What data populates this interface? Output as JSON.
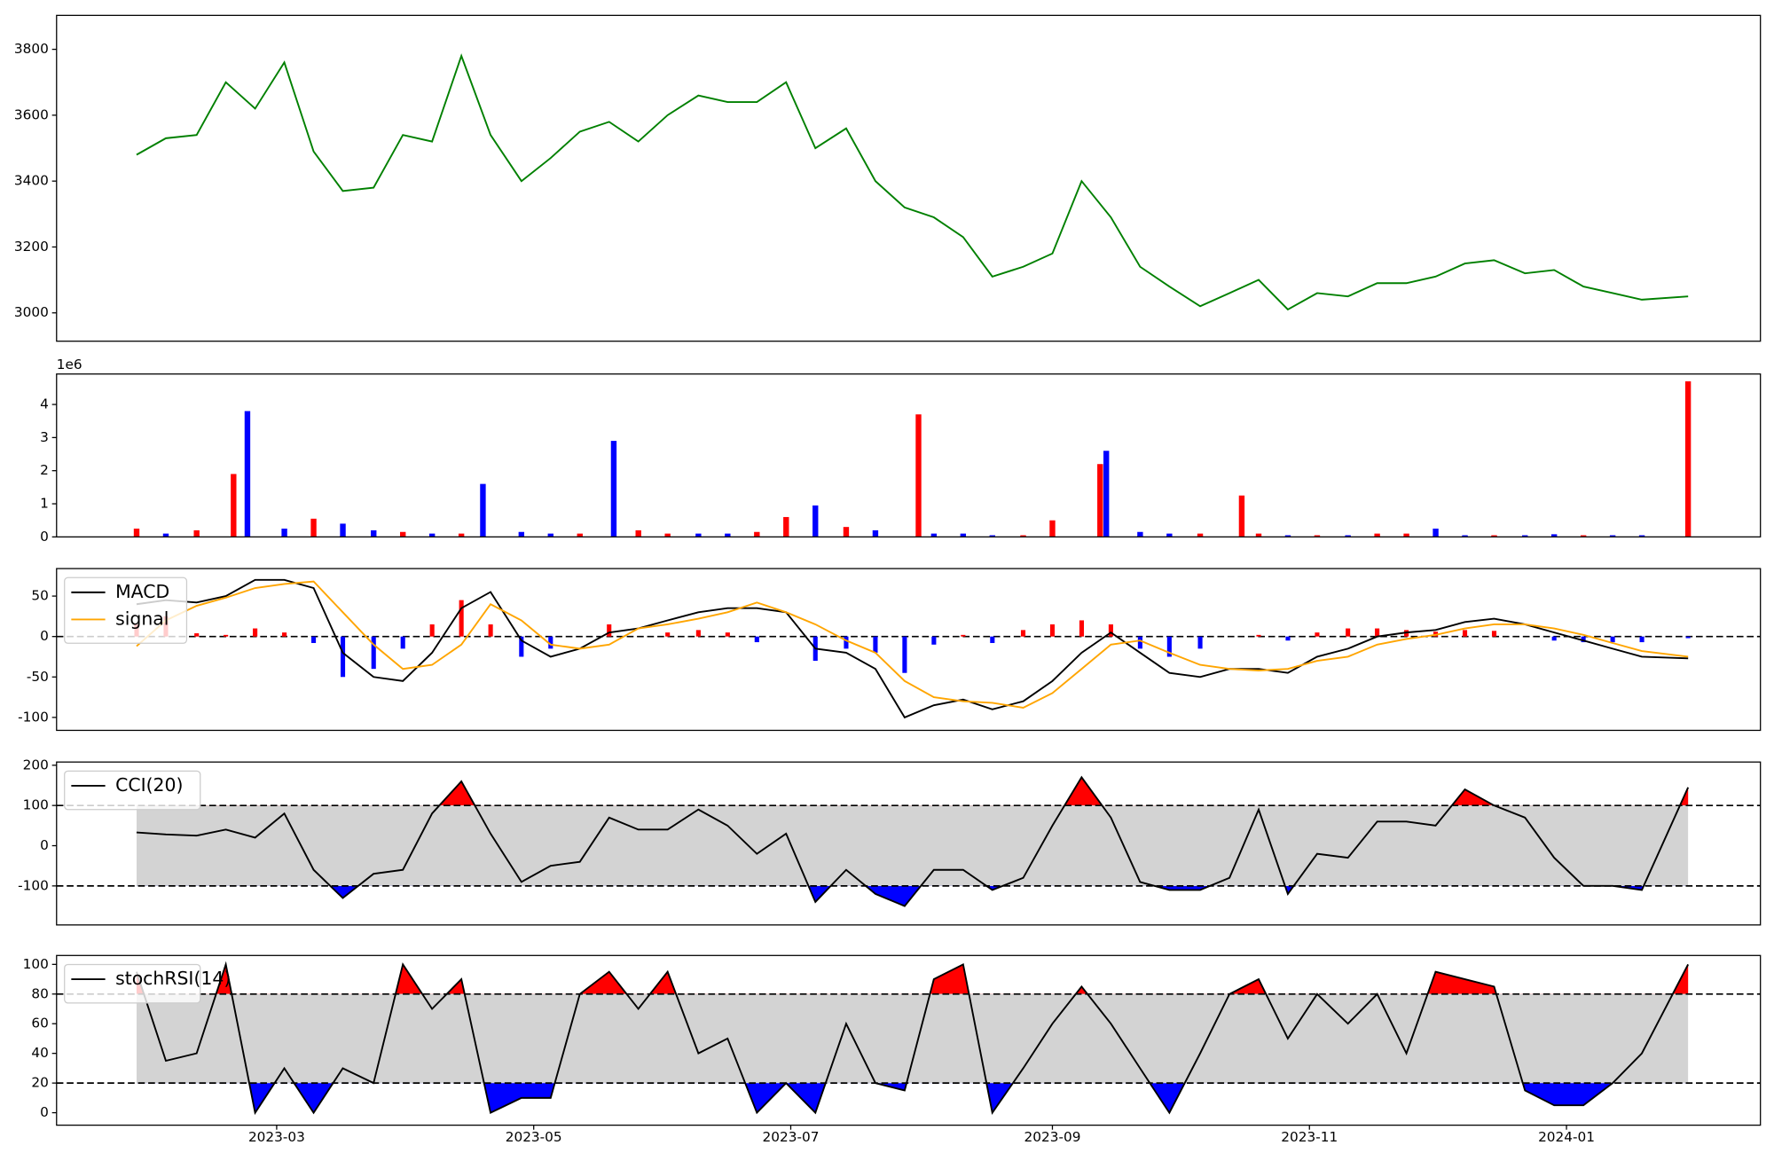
{
  "chart_data": [
    {
      "type": "line",
      "color": "#008000",
      "x": [
        2023.071,
        2023.09,
        2023.11,
        2023.129,
        2023.148,
        2023.167,
        2023.186,
        2023.205,
        2023.225,
        2023.244,
        2023.263,
        2023.282,
        2023.301,
        2023.321,
        2023.34,
        2023.359,
        2023.378,
        2023.397,
        2023.416,
        2023.436,
        2023.455,
        2023.474,
        2023.493,
        2023.512,
        2023.532,
        2023.551,
        2023.57,
        2023.589,
        2023.608,
        2023.627,
        2023.647,
        2023.666,
        2023.685,
        2023.704,
        2023.723,
        2023.742,
        2023.762,
        2023.781,
        2023.8,
        2023.819,
        2023.838,
        2023.858,
        2023.877,
        2023.896,
        2023.915,
        2023.934,
        2023.953,
        2023.973,
        2023.992,
        2024.011,
        2024.03,
        2024.049,
        2024.079
      ],
      "values": [
        3480,
        3530,
        3540,
        3700,
        3620,
        3760,
        3490,
        3370,
        3380,
        3540,
        3520,
        3780,
        3540,
        3400,
        3470,
        3550,
        3580,
        3520,
        3600,
        3660,
        3640,
        3640,
        3700,
        3500,
        3560,
        3400,
        3320,
        3290,
        3230,
        3110,
        3140,
        3180,
        3400,
        3290,
        3140,
        3080,
        3020,
        3060,
        3100,
        3010,
        3060,
        3050,
        3090,
        3090,
        3110,
        3150,
        3160,
        3120,
        3130,
        3080,
        3060,
        3040,
        3050
      ],
      "xlim": [
        2023.019,
        2024.126
      ],
      "ylim": [
        2914,
        3903
      ],
      "yticks": [
        3000,
        3200,
        3400,
        3600,
        3800
      ]
    },
    {
      "type": "bar",
      "y_offset_label": "1e6",
      "x": [
        2023.071,
        2023.09,
        2023.11,
        2023.134,
        2023.143,
        2023.167,
        2023.186,
        2023.205,
        2023.225,
        2023.244,
        2023.263,
        2023.282,
        2023.296,
        2023.321,
        2023.34,
        2023.359,
        2023.381,
        2023.397,
        2023.416,
        2023.436,
        2023.455,
        2023.474,
        2023.493,
        2023.512,
        2023.532,
        2023.551,
        2023.579,
        2023.589,
        2023.608,
        2023.627,
        2023.647,
        2023.666,
        2023.697,
        2023.701,
        2023.723,
        2023.742,
        2023.762,
        2023.789,
        2023.8,
        2023.819,
        2023.838,
        2023.858,
        2023.877,
        2023.896,
        2023.915,
        2023.934,
        2023.953,
        2023.973,
        2023.992,
        2024.011,
        2024.03,
        2024.049,
        2024.079
      ],
      "values": [
        0.25,
        0.1,
        0.2,
        1.9,
        3.8,
        0.25,
        0.55,
        0.4,
        0.2,
        0.15,
        0.1,
        0.1,
        1.6,
        0.15,
        0.1,
        0.1,
        2.9,
        0.2,
        0.1,
        0.1,
        0.1,
        0.15,
        0.6,
        0.95,
        0.3,
        0.2,
        3.7,
        0.1,
        0.1,
        0.05,
        0.05,
        0.5,
        2.2,
        2.6,
        0.15,
        0.1,
        0.1,
        1.25,
        0.1,
        0.05,
        0.05,
        0.05,
        0.1,
        0.1,
        0.25,
        0.05,
        0.05,
        0.05,
        0.08,
        0.05,
        0.05,
        0.05,
        4.7
      ],
      "colors": [
        "#ff0000",
        "#0000ff",
        "#ff0000",
        "#ff0000",
        "#0000ff",
        "#0000ff",
        "#ff0000",
        "#0000ff",
        "#0000ff",
        "#ff0000",
        "#0000ff",
        "#ff0000",
        "#0000ff",
        "#0000ff",
        "#0000ff",
        "#ff0000",
        "#0000ff",
        "#ff0000",
        "#ff0000",
        "#0000ff",
        "#0000ff",
        "#ff0000",
        "#ff0000",
        "#0000ff",
        "#ff0000",
        "#0000ff",
        "#ff0000",
        "#0000ff",
        "#0000ff",
        "#0000ff",
        "#ff0000",
        "#ff0000",
        "#ff0000",
        "#0000ff",
        "#0000ff",
        "#0000ff",
        "#ff0000",
        "#ff0000",
        "#ff0000",
        "#0000ff",
        "#ff0000",
        "#0000ff",
        "#ff0000",
        "#ff0000",
        "#0000ff",
        "#0000ff",
        "#ff0000",
        "#0000ff",
        "#0000ff",
        "#ff0000",
        "#0000ff",
        "#0000ff",
        "#ff0000"
      ],
      "xlim": [
        2023.019,
        2024.126
      ],
      "ylim": [
        0,
        4.92
      ],
      "yticks": [
        0,
        1,
        2,
        3,
        4
      ]
    },
    {
      "type": "macd",
      "legend": "upper left",
      "hlines": [
        0
      ],
      "x": [
        2023.071,
        2023.09,
        2023.11,
        2023.129,
        2023.148,
        2023.167,
        2023.186,
        2023.205,
        2023.225,
        2023.244,
        2023.263,
        2023.282,
        2023.301,
        2023.321,
        2023.34,
        2023.359,
        2023.378,
        2023.397,
        2023.416,
        2023.436,
        2023.455,
        2023.474,
        2023.493,
        2023.512,
        2023.532,
        2023.551,
        2023.57,
        2023.589,
        2023.608,
        2023.627,
        2023.647,
        2023.666,
        2023.685,
        2023.704,
        2023.723,
        2023.742,
        2023.762,
        2023.781,
        2023.8,
        2023.819,
        2023.838,
        2023.858,
        2023.877,
        2023.896,
        2023.915,
        2023.934,
        2023.953,
        2023.973,
        2023.992,
        2024.011,
        2024.03,
        2024.049,
        2024.079
      ],
      "series": [
        {
          "name": "MACD",
          "color": "#000000",
          "values": [
            40,
            45,
            42,
            50,
            70,
            70,
            60,
            -20,
            -50,
            -55,
            -20,
            35,
            55,
            -5,
            -25,
            -15,
            5,
            10,
            20,
            30,
            35,
            35,
            30,
            -15,
            -20,
            -40,
            -100,
            -85,
            -78,
            -90,
            -80,
            -55,
            -20,
            5,
            -20,
            -45,
            -50,
            -40,
            -40,
            -45,
            -25,
            -15,
            0,
            5,
            8,
            18,
            22,
            15,
            5,
            -5,
            -15,
            -25,
            -27
          ]
        },
        {
          "name": "signal",
          "color": "#ffa500",
          "values": [
            -12,
            20,
            38,
            48,
            60,
            65,
            68,
            30,
            -10,
            -40,
            -35,
            -10,
            40,
            20,
            -10,
            -15,
            -10,
            10,
            15,
            22,
            30,
            42,
            30,
            15,
            -5,
            -20,
            -55,
            -75,
            -80,
            -82,
            -88,
            -70,
            -40,
            -10,
            -5,
            -20,
            -35,
            -40,
            -42,
            -40,
            -30,
            -25,
            -10,
            -3,
            2,
            10,
            15,
            15,
            10,
            2,
            -8,
            -18,
            -25
          ]
        }
      ],
      "histogram": {
        "values": [
          15,
          25,
          4,
          2,
          10,
          5,
          -8,
          -50,
          -40,
          -15,
          15,
          45,
          15,
          -25,
          -15,
          0,
          15,
          0,
          5,
          8,
          5,
          -7,
          0,
          -30,
          -15,
          -20,
          -45,
          -10,
          2,
          -8,
          8,
          15,
          20,
          15,
          -15,
          -25,
          -15,
          0,
          2,
          -5,
          5,
          10,
          10,
          8,
          6,
          8,
          7,
          0,
          -5,
          -7,
          -7,
          -7,
          -2
        ],
        "pos_color": "#ff0000",
        "neg_color": "#0000ff"
      },
      "xlim": [
        2023.019,
        2024.126
      ],
      "ylim": [
        -116,
        84
      ],
      "yticks": [
        -100,
        -50,
        0,
        50
      ]
    },
    {
      "type": "oscillator",
      "legend": "upper left",
      "thresholds": [
        -100,
        100
      ],
      "band_color": "#d3d3d3",
      "above_color": "#ff0000",
      "below_color": "#0000ff",
      "x": [
        2023.071,
        2023.09,
        2023.11,
        2023.129,
        2023.148,
        2023.167,
        2023.186,
        2023.205,
        2023.225,
        2023.244,
        2023.263,
        2023.282,
        2023.301,
        2023.321,
        2023.34,
        2023.359,
        2023.378,
        2023.397,
        2023.416,
        2023.436,
        2023.455,
        2023.474,
        2023.493,
        2023.512,
        2023.532,
        2023.551,
        2023.57,
        2023.589,
        2023.608,
        2023.627,
        2023.647,
        2023.666,
        2023.685,
        2023.704,
        2023.723,
        2023.742,
        2023.762,
        2023.781,
        2023.8,
        2023.819,
        2023.838,
        2023.858,
        2023.877,
        2023.896,
        2023.915,
        2023.934,
        2023.953,
        2023.973,
        2023.992,
        2024.011,
        2024.03,
        2024.049,
        2024.079
      ],
      "series": [
        {
          "name": "CCI(20)",
          "color": "#000000",
          "values": [
            33,
            28,
            25,
            40,
            20,
            80,
            -60,
            -130,
            -70,
            -60,
            80,
            160,
            30,
            -90,
            -50,
            -40,
            70,
            40,
            40,
            90,
            50,
            -20,
            30,
            -140,
            -60,
            -120,
            -150,
            -60,
            -60,
            -110,
            -80,
            50,
            170,
            70,
            -90,
            -110,
            -110,
            -80,
            90,
            -120,
            -20,
            -30,
            60,
            60,
            50,
            140,
            100,
            70,
            -30,
            -100,
            -100,
            -110,
            145
          ]
        }
      ],
      "xlim": [
        2023.019,
        2024.126
      ],
      "ylim": [
        -197,
        208
      ],
      "yticks": [
        -100,
        0,
        100,
        200
      ]
    },
    {
      "type": "oscillator",
      "legend": "upper left",
      "thresholds": [
        20,
        80
      ],
      "band_color": "#d3d3d3",
      "above_color": "#ff0000",
      "below_color": "#0000ff",
      "x": [
        2023.071,
        2023.09,
        2023.11,
        2023.129,
        2023.148,
        2023.167,
        2023.186,
        2023.205,
        2023.225,
        2023.244,
        2023.263,
        2023.282,
        2023.301,
        2023.321,
        2023.34,
        2023.359,
        2023.378,
        2023.397,
        2023.416,
        2023.436,
        2023.455,
        2023.474,
        2023.493,
        2023.512,
        2023.532,
        2023.551,
        2023.57,
        2023.589,
        2023.608,
        2023.627,
        2023.647,
        2023.666,
        2023.685,
        2023.704,
        2023.723,
        2023.742,
        2023.762,
        2023.781,
        2023.8,
        2023.819,
        2023.838,
        2023.858,
        2023.877,
        2023.896,
        2023.915,
        2023.934,
        2023.953,
        2023.973,
        2023.992,
        2024.011,
        2024.03,
        2024.049,
        2024.079
      ],
      "series": [
        {
          "name": "stochRSI(14)",
          "color": "#000000",
          "values": [
            95,
            35,
            40,
            100,
            0,
            30,
            0,
            30,
            20,
            100,
            70,
            90,
            0,
            10,
            10,
            80,
            95,
            70,
            95,
            40,
            50,
            0,
            20,
            0,
            60,
            20,
            15,
            90,
            100,
            0,
            30,
            60,
            85,
            60,
            30,
            0,
            40,
            80,
            90,
            50,
            80,
            60,
            80,
            40,
            95,
            90,
            85,
            15,
            5,
            5,
            20,
            40,
            100
          ]
        }
      ],
      "xlim": [
        2023.019,
        2024.126
      ],
      "ylim": [
        -8.4,
        106
      ],
      "yticks": [
        0,
        20,
        40,
        60,
        80,
        100
      ],
      "xticks": [
        {
          "value": 2023.162,
          "label": "2023-03"
        },
        {
          "value": 2023.329,
          "label": "2023-05"
        },
        {
          "value": 2023.496,
          "label": "2023-07"
        },
        {
          "value": 2023.666,
          "label": "2023-09"
        },
        {
          "value": 2023.833,
          "label": "2023-11"
        },
        {
          "value": 2024.0,
          "label": "2024-01"
        }
      ]
    }
  ]
}
